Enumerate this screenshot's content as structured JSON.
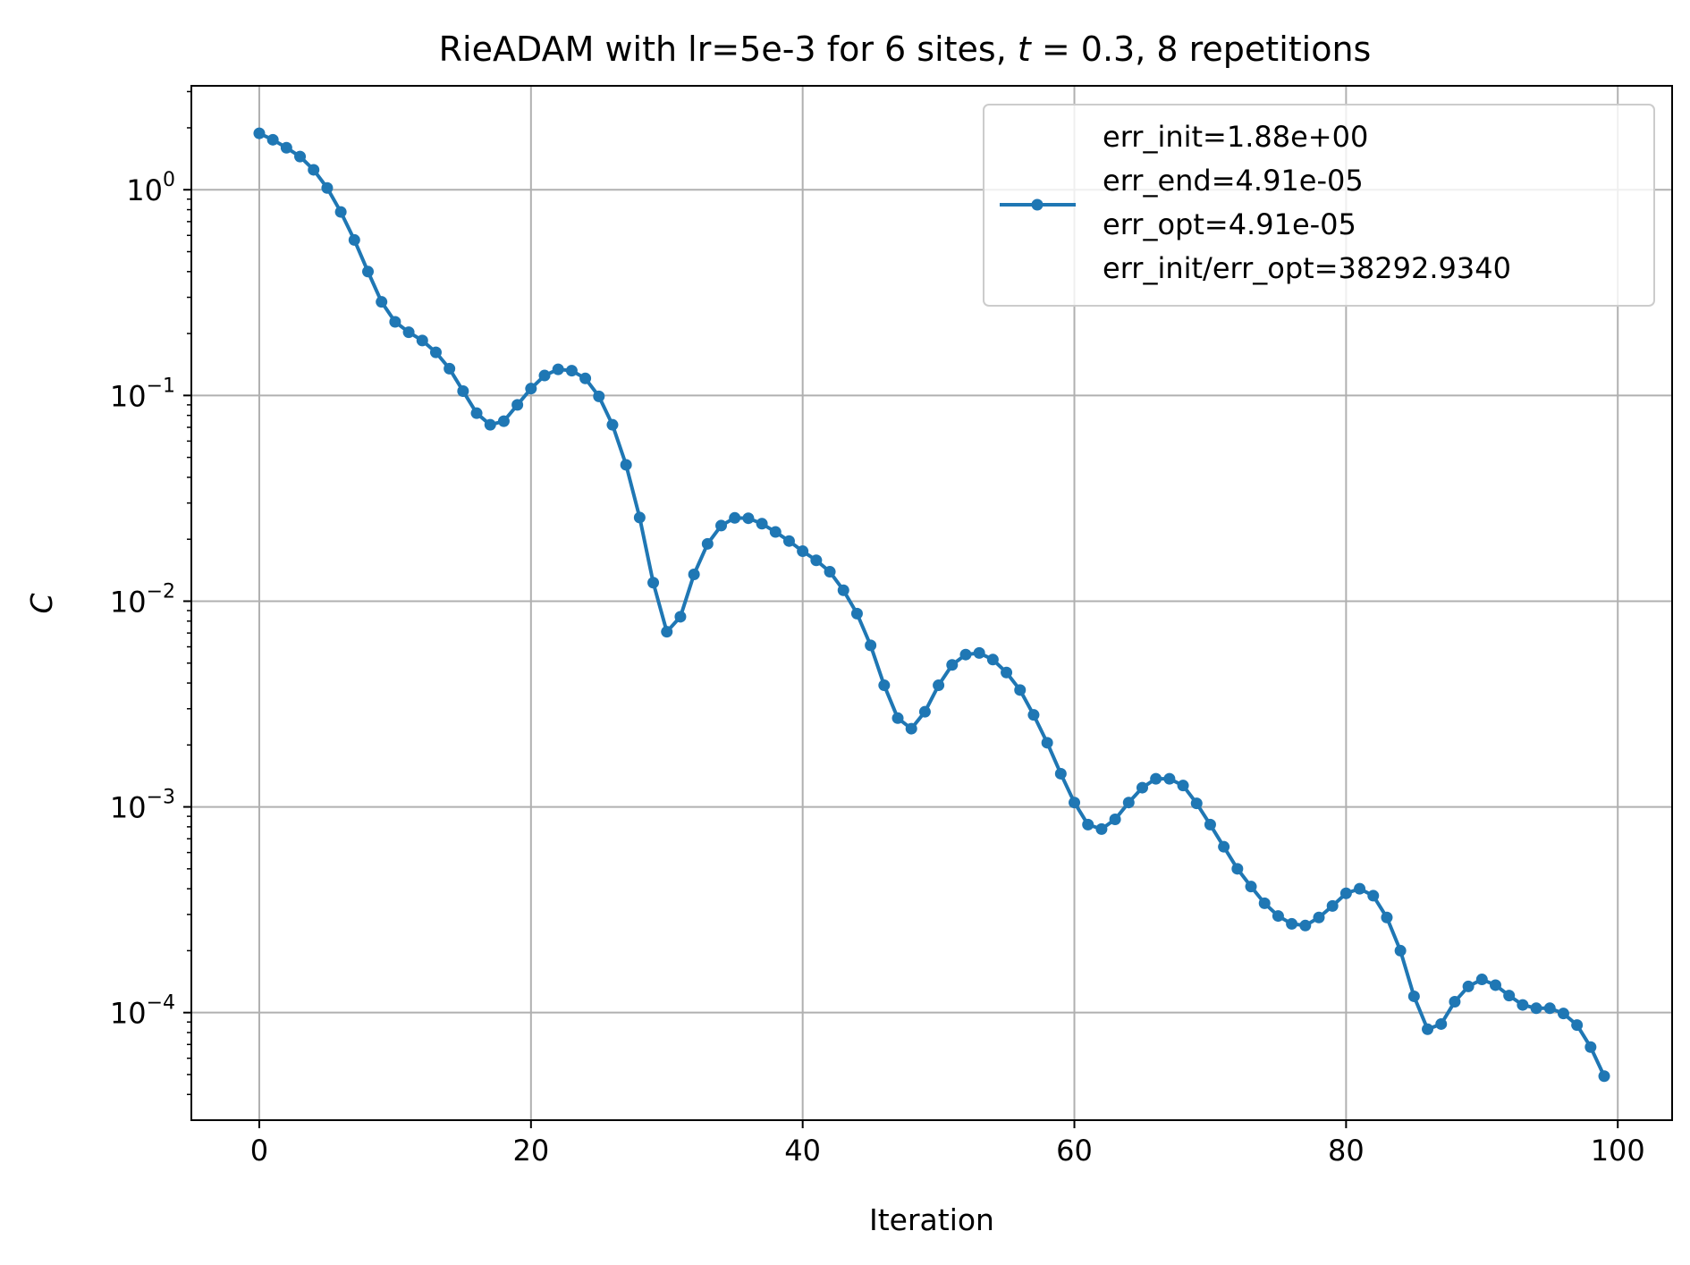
{
  "chart_data": {
    "type": "line",
    "title_text": "RieADAM with lr=5e-3 for 6 sites, ",
    "title_math_var": "t",
    "title_math_rest": " = 0.3, 8 repetitions",
    "xlabel": "Iteration",
    "ylabel": "C",
    "yscale": "log",
    "xlim": [
      -5,
      104
    ],
    "ylim": [
      3e-05,
      3.2
    ],
    "x_ticks": [
      0,
      20,
      40,
      60,
      80,
      100
    ],
    "x_tick_labels": [
      "0",
      "20",
      "40",
      "60",
      "80",
      "100"
    ],
    "y_ticks": [
      1,
      0.1,
      0.01,
      0.001,
      0.0001
    ],
    "y_tick_labels": [
      {
        "base": "10",
        "exp": "0"
      },
      {
        "base": "10",
        "exp": "−1"
      },
      {
        "base": "10",
        "exp": "−2"
      },
      {
        "base": "10",
        "exp": "−3"
      },
      {
        "base": "10",
        "exp": "−4"
      }
    ],
    "grid": true,
    "legend_position": "top-right",
    "color": "#1f77b4",
    "legend_lines": [
      "err_init=1.88e+00",
      "err_end=4.91e-05",
      "err_opt=4.91e-05",
      "err_init/err_opt=38292.9340"
    ],
    "series": [
      {
        "x": [
          0,
          1,
          2,
          3,
          4,
          5,
          6,
          7,
          8,
          9,
          10,
          11,
          12,
          13,
          14,
          15,
          16,
          17,
          18,
          19,
          20,
          21,
          22,
          23,
          24,
          25,
          26,
          27,
          28,
          29,
          30,
          31,
          32,
          33,
          34,
          35,
          36,
          37,
          38,
          39,
          40,
          41,
          42,
          43,
          44,
          45,
          46,
          47,
          48,
          49,
          50,
          51,
          52,
          53,
          54,
          55,
          56,
          57,
          58,
          59,
          60,
          61,
          62,
          63,
          64,
          65,
          66,
          67,
          68,
          69,
          70,
          71,
          72,
          73,
          74,
          75,
          76,
          77,
          78,
          79,
          80,
          81,
          82,
          83,
          84,
          85,
          86,
          87,
          88,
          89,
          90,
          91,
          92,
          93,
          94,
          95,
          96,
          97,
          98,
          99
        ],
        "values": [
          1.88,
          1.75,
          1.6,
          1.45,
          1.25,
          1.02,
          0.78,
          0.57,
          0.4,
          0.285,
          0.228,
          0.203,
          0.185,
          0.162,
          0.135,
          0.105,
          0.082,
          0.072,
          0.075,
          0.09,
          0.108,
          0.125,
          0.134,
          0.132,
          0.121,
          0.099,
          0.072,
          0.046,
          0.0255,
          0.0123,
          0.0071,
          0.0084,
          0.0135,
          0.019,
          0.0233,
          0.0254,
          0.0253,
          0.0238,
          0.0217,
          0.0196,
          0.0175,
          0.0158,
          0.0139,
          0.0113,
          0.0087,
          0.0061,
          0.0039,
          0.0027,
          0.0024,
          0.0029,
          0.0039,
          0.0049,
          0.0055,
          0.0056,
          0.0052,
          0.0045,
          0.0037,
          0.0028,
          0.00205,
          0.00145,
          0.00105,
          0.00082,
          0.00078,
          0.00087,
          0.00105,
          0.00124,
          0.00137,
          0.00137,
          0.00127,
          0.00104,
          0.00082,
          0.00064,
          0.0005,
          0.00041,
          0.00034,
          0.000295,
          0.00027,
          0.000265,
          0.00029,
          0.00033,
          0.00038,
          0.0004,
          0.00037,
          0.00029,
          0.0002,
          0.00012,
          8.3e-05,
          8.8e-05,
          0.000113,
          0.000134,
          0.000145,
          0.000136,
          0.000121,
          0.000109,
          0.000105,
          0.000105,
          9.9e-05,
          8.7e-05,
          6.8e-05,
          4.91e-05
        ]
      }
    ]
  }
}
